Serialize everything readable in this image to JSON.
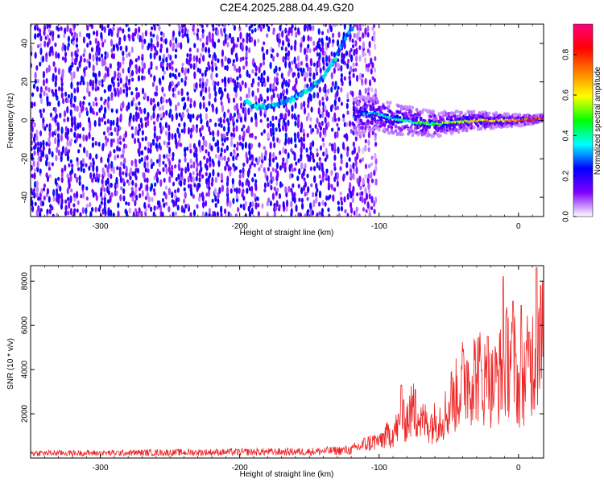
{
  "figure": {
    "title": "C2E4.2025.288.04.49.G20"
  },
  "chart_data": [
    {
      "type": "heatmap",
      "xlabel": "Height of straight line (km)",
      "ylabel": "Frequency (Hz)",
      "xlim": [
        -350,
        18
      ],
      "ylim": [
        -50,
        50
      ],
      "xticks": [
        -300,
        -200,
        -100,
        0
      ],
      "yticks": [
        -40,
        -20,
        0,
        20,
        40
      ],
      "colorbar": {
        "label": "Normalized spectral amplitude",
        "range": [
          0.0,
          0.95
        ],
        "ticks": [
          0.0,
          0.2,
          0.4,
          0.6,
          0.8
        ],
        "colormap": [
          "#ffffff",
          "#8000ff",
          "#0000ff",
          "#00ffff",
          "#00ff00",
          "#ffff00",
          "#ff8000",
          "#ff0000",
          "#ff0080"
        ]
      },
      "features": {
        "noise_region": {
          "x_range": [
            -350,
            -103
          ],
          "typical_amplitude": 0.15
        },
        "drifting_tone": [
          {
            "x": -195,
            "y": 10
          },
          {
            "x": -190,
            "y": 7
          },
          {
            "x": -180,
            "y": 7
          },
          {
            "x": -165,
            "y": 10
          },
          {
            "x": -150,
            "y": 16
          },
          {
            "x": -140,
            "y": 23
          },
          {
            "x": -132,
            "y": 31
          },
          {
            "x": -126,
            "y": 40
          },
          {
            "x": -120,
            "y": 48
          }
        ],
        "signal_band": [
          {
            "x": -118,
            "y": 2
          },
          {
            "x": -105,
            "y": 4
          },
          {
            "x": -90,
            "y": 1
          },
          {
            "x": -75,
            "y": -1
          },
          {
            "x": -60,
            "y": -2
          },
          {
            "x": -45,
            "y": -1
          },
          {
            "x": -30,
            "y": 0
          },
          {
            "x": -15,
            "y": 0
          },
          {
            "x": 0,
            "y": 0
          },
          {
            "x": 18,
            "y": 1
          }
        ]
      }
    },
    {
      "type": "line",
      "xlabel": "Height of straight line (km)",
      "ylabel": "SNR (10 * v/v)",
      "xlim": [
        -350,
        18
      ],
      "ylim": [
        0,
        8700
      ],
      "xticks": [
        -300,
        -200,
        -100,
        0
      ],
      "yticks": [
        2000,
        4000,
        6000,
        8000
      ],
      "series": [
        {
          "color": "#ee2222",
          "x": [
            -350,
            -300,
            -250,
            -200,
            -150,
            -120,
            -110,
            -100,
            -90,
            -80,
            -75,
            -70,
            -60,
            -50,
            -40,
            -30,
            -20,
            -10,
            -5,
            0,
            5,
            10,
            15,
            18
          ],
          "y": [
            250,
            250,
            280,
            300,
            320,
            400,
            700,
            900,
            1300,
            2000,
            2500,
            1800,
            1800,
            2400,
            3800,
            4300,
            3500,
            4500,
            5500,
            3500,
            4300,
            5000,
            6000,
            5800
          ],
          "peaks": [
            {
              "x": -100,
              "y": 900
            },
            {
              "x": -84,
              "y": 3300
            },
            {
              "x": -74,
              "y": 3100
            },
            {
              "x": -48,
              "y": 3900
            },
            {
              "x": -37,
              "y": 4400
            },
            {
              "x": -22,
              "y": 5500
            },
            {
              "x": -11,
              "y": 8200
            },
            {
              "x": -4,
              "y": 7100
            },
            {
              "x": 2,
              "y": 6900
            },
            {
              "x": 8,
              "y": 5700
            },
            {
              "x": 13,
              "y": 8600
            },
            {
              "x": 16,
              "y": 7800
            }
          ]
        }
      ]
    }
  ]
}
